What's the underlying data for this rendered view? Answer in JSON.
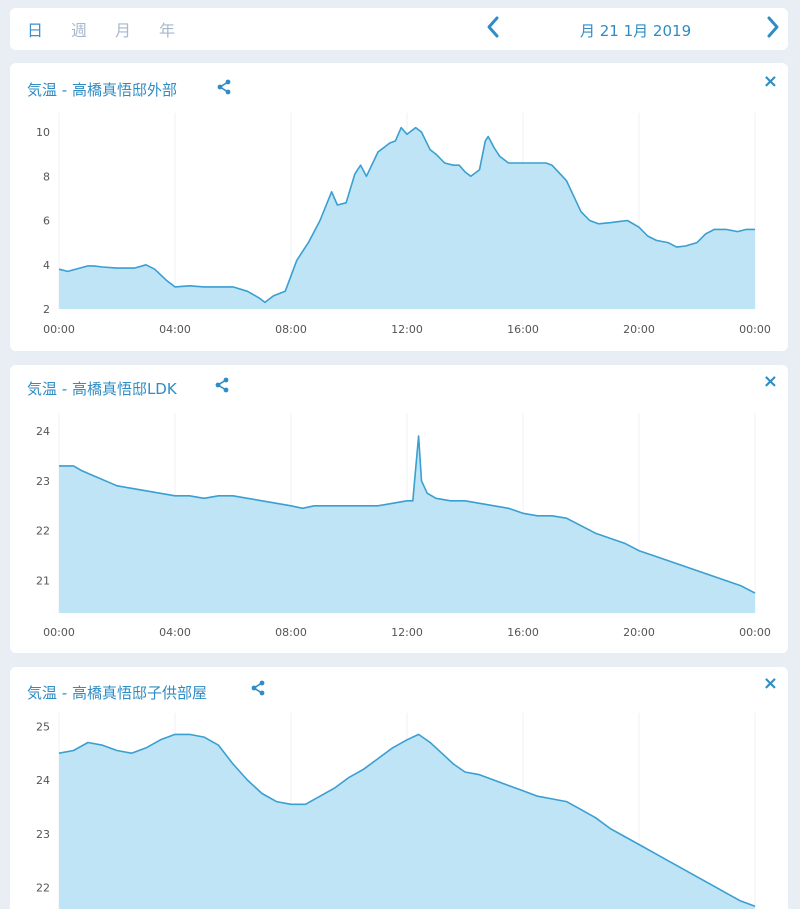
{
  "nav": {
    "tabs": [
      "日",
      "週",
      "月",
      "年"
    ],
    "active_tab": 0,
    "date": "月 21 1月 2019",
    "prev_icon": "chevron-left-icon",
    "next_icon": "chevron-right-icon"
  },
  "colors": {
    "accent": "#2f8cc4",
    "line": "#3a9fd1",
    "fill": "#bfe4f5",
    "grid": "#eef1f4"
  },
  "cards": [
    {
      "title": "気温 - 高橋真悟邸外部",
      "share_icon": "share-icon",
      "close_icon": "×",
      "chart_data": {
        "type": "area",
        "x_ticks": [
          "00:00",
          "04:00",
          "08:00",
          "12:00",
          "16:00",
          "20:00",
          "00:00"
        ],
        "y_ticks": [
          "2",
          "4",
          "6",
          "8",
          "10"
        ],
        "ylim": [
          2,
          10.5
        ],
        "x_unit": "hours",
        "points": [
          [
            0,
            3.8
          ],
          [
            0.3,
            3.7
          ],
          [
            1,
            3.95
          ],
          [
            1.2,
            3.95
          ],
          [
            1.5,
            3.9
          ],
          [
            2,
            3.85
          ],
          [
            2.6,
            3.85
          ],
          [
            3,
            4.0
          ],
          [
            3.3,
            3.8
          ],
          [
            3.7,
            3.3
          ],
          [
            4,
            3.0
          ],
          [
            4.5,
            3.05
          ],
          [
            5,
            3.0
          ],
          [
            6,
            3.0
          ],
          [
            6.5,
            2.8
          ],
          [
            6.9,
            2.5
          ],
          [
            7.1,
            2.3
          ],
          [
            7.4,
            2.6
          ],
          [
            7.8,
            2.8
          ],
          [
            8.2,
            4.2
          ],
          [
            8.6,
            5.0
          ],
          [
            9,
            6.0
          ],
          [
            9.4,
            7.3
          ],
          [
            9.6,
            6.7
          ],
          [
            9.9,
            6.8
          ],
          [
            10.2,
            8.1
          ],
          [
            10.4,
            8.5
          ],
          [
            10.6,
            8.0
          ],
          [
            11,
            9.1
          ],
          [
            11.4,
            9.5
          ],
          [
            11.6,
            9.6
          ],
          [
            11.8,
            10.2
          ],
          [
            12,
            9.9
          ],
          [
            12.3,
            10.2
          ],
          [
            12.5,
            10.0
          ],
          [
            12.8,
            9.2
          ],
          [
            13,
            9.0
          ],
          [
            13.3,
            8.6
          ],
          [
            13.6,
            8.5
          ],
          [
            13.8,
            8.5
          ],
          [
            14,
            8.2
          ],
          [
            14.2,
            8.0
          ],
          [
            14.5,
            8.3
          ],
          [
            14.7,
            9.6
          ],
          [
            14.8,
            9.8
          ],
          [
            15,
            9.3
          ],
          [
            15.2,
            8.9
          ],
          [
            15.5,
            8.6
          ],
          [
            16,
            8.6
          ],
          [
            16.5,
            8.6
          ],
          [
            16.8,
            8.6
          ],
          [
            17,
            8.5
          ],
          [
            17.5,
            7.8
          ],
          [
            18,
            6.4
          ],
          [
            18.3,
            6.0
          ],
          [
            18.6,
            5.85
          ],
          [
            19,
            5.9
          ],
          [
            19.3,
            5.95
          ],
          [
            19.6,
            6.0
          ],
          [
            20,
            5.7
          ],
          [
            20.3,
            5.3
          ],
          [
            20.6,
            5.1
          ],
          [
            21,
            5.0
          ],
          [
            21.3,
            4.8
          ],
          [
            21.6,
            4.85
          ],
          [
            22,
            5.0
          ],
          [
            22.3,
            5.4
          ],
          [
            22.6,
            5.6
          ],
          [
            23,
            5.6
          ],
          [
            23.4,
            5.5
          ],
          [
            23.7,
            5.6
          ],
          [
            24,
            5.6
          ]
        ]
      }
    },
    {
      "title": "気温 - 高橋真悟邸LDK",
      "share_icon": "share-icon",
      "close_icon": "×",
      "chart_data": {
        "type": "area",
        "x_ticks": [
          "00:00",
          "04:00",
          "08:00",
          "12:00",
          "16:00",
          "20:00",
          "00:00"
        ],
        "y_ticks": [
          "21",
          "22",
          "23",
          "24"
        ],
        "ylim": [
          20.35,
          24.2
        ],
        "x_unit": "hours",
        "points": [
          [
            0,
            23.3
          ],
          [
            0.5,
            23.3
          ],
          [
            0.8,
            23.2
          ],
          [
            1.2,
            23.1
          ],
          [
            1.6,
            23.0
          ],
          [
            2,
            22.9
          ],
          [
            2.5,
            22.85
          ],
          [
            3,
            22.8
          ],
          [
            3.5,
            22.75
          ],
          [
            4,
            22.7
          ],
          [
            4.5,
            22.7
          ],
          [
            5,
            22.65
          ],
          [
            5.5,
            22.7
          ],
          [
            6,
            22.7
          ],
          [
            6.5,
            22.65
          ],
          [
            7,
            22.6
          ],
          [
            7.5,
            22.55
          ],
          [
            8,
            22.5
          ],
          [
            8.4,
            22.45
          ],
          [
            8.8,
            22.5
          ],
          [
            9.5,
            22.5
          ],
          [
            10.5,
            22.5
          ],
          [
            11,
            22.5
          ],
          [
            11.5,
            22.55
          ],
          [
            12,
            22.6
          ],
          [
            12.2,
            22.6
          ],
          [
            12.4,
            23.9
          ],
          [
            12.5,
            23.0
          ],
          [
            12.7,
            22.75
          ],
          [
            13,
            22.65
          ],
          [
            13.5,
            22.6
          ],
          [
            14,
            22.6
          ],
          [
            14.5,
            22.55
          ],
          [
            15,
            22.5
          ],
          [
            15.5,
            22.45
          ],
          [
            16,
            22.35
          ],
          [
            16.5,
            22.3
          ],
          [
            17,
            22.3
          ],
          [
            17.5,
            22.25
          ],
          [
            18,
            22.1
          ],
          [
            18.5,
            21.95
          ],
          [
            19,
            21.85
          ],
          [
            19.5,
            21.75
          ],
          [
            20,
            21.6
          ],
          [
            20.5,
            21.5
          ],
          [
            21,
            21.4
          ],
          [
            21.5,
            21.3
          ],
          [
            22,
            21.2
          ],
          [
            22.5,
            21.1
          ],
          [
            23,
            21.0
          ],
          [
            23.5,
            20.9
          ],
          [
            24,
            20.75
          ]
        ]
      }
    },
    {
      "title": "気温 - 高橋真悟邸子供部屋",
      "share_icon": "share-icon",
      "close_icon": "×",
      "chart_data": {
        "type": "area",
        "x_ticks": [],
        "y_ticks": [
          "22",
          "23",
          "24",
          "25"
        ],
        "ylim": [
          21.6,
          25.1
        ],
        "x_unit": "hours",
        "points": [
          [
            0,
            24.5
          ],
          [
            0.5,
            24.55
          ],
          [
            1,
            24.7
          ],
          [
            1.5,
            24.65
          ],
          [
            2,
            24.55
          ],
          [
            2.5,
            24.5
          ],
          [
            3,
            24.6
          ],
          [
            3.5,
            24.75
          ],
          [
            4,
            24.85
          ],
          [
            4.5,
            24.85
          ],
          [
            5,
            24.8
          ],
          [
            5.5,
            24.65
          ],
          [
            6,
            24.3
          ],
          [
            6.5,
            24.0
          ],
          [
            7,
            23.75
          ],
          [
            7.5,
            23.6
          ],
          [
            8,
            23.55
          ],
          [
            8.5,
            23.55
          ],
          [
            9,
            23.7
          ],
          [
            9.5,
            23.85
          ],
          [
            10,
            24.05
          ],
          [
            10.5,
            24.2
          ],
          [
            11,
            24.4
          ],
          [
            11.5,
            24.6
          ],
          [
            12,
            24.75
          ],
          [
            12.4,
            24.85
          ],
          [
            12.8,
            24.7
          ],
          [
            13.2,
            24.5
          ],
          [
            13.6,
            24.3
          ],
          [
            14,
            24.15
          ],
          [
            14.5,
            24.1
          ],
          [
            15,
            24.0
          ],
          [
            15.5,
            23.9
          ],
          [
            16,
            23.8
          ],
          [
            16.5,
            23.7
          ],
          [
            17,
            23.65
          ],
          [
            17.5,
            23.6
          ],
          [
            18,
            23.45
          ],
          [
            18.5,
            23.3
          ],
          [
            19,
            23.1
          ],
          [
            19.5,
            22.95
          ],
          [
            20,
            22.8
          ],
          [
            20.5,
            22.65
          ],
          [
            21,
            22.5
          ],
          [
            21.5,
            22.35
          ],
          [
            22,
            22.2
          ],
          [
            22.5,
            22.05
          ],
          [
            23,
            21.9
          ],
          [
            23.5,
            21.75
          ],
          [
            24,
            21.65
          ]
        ]
      }
    }
  ]
}
